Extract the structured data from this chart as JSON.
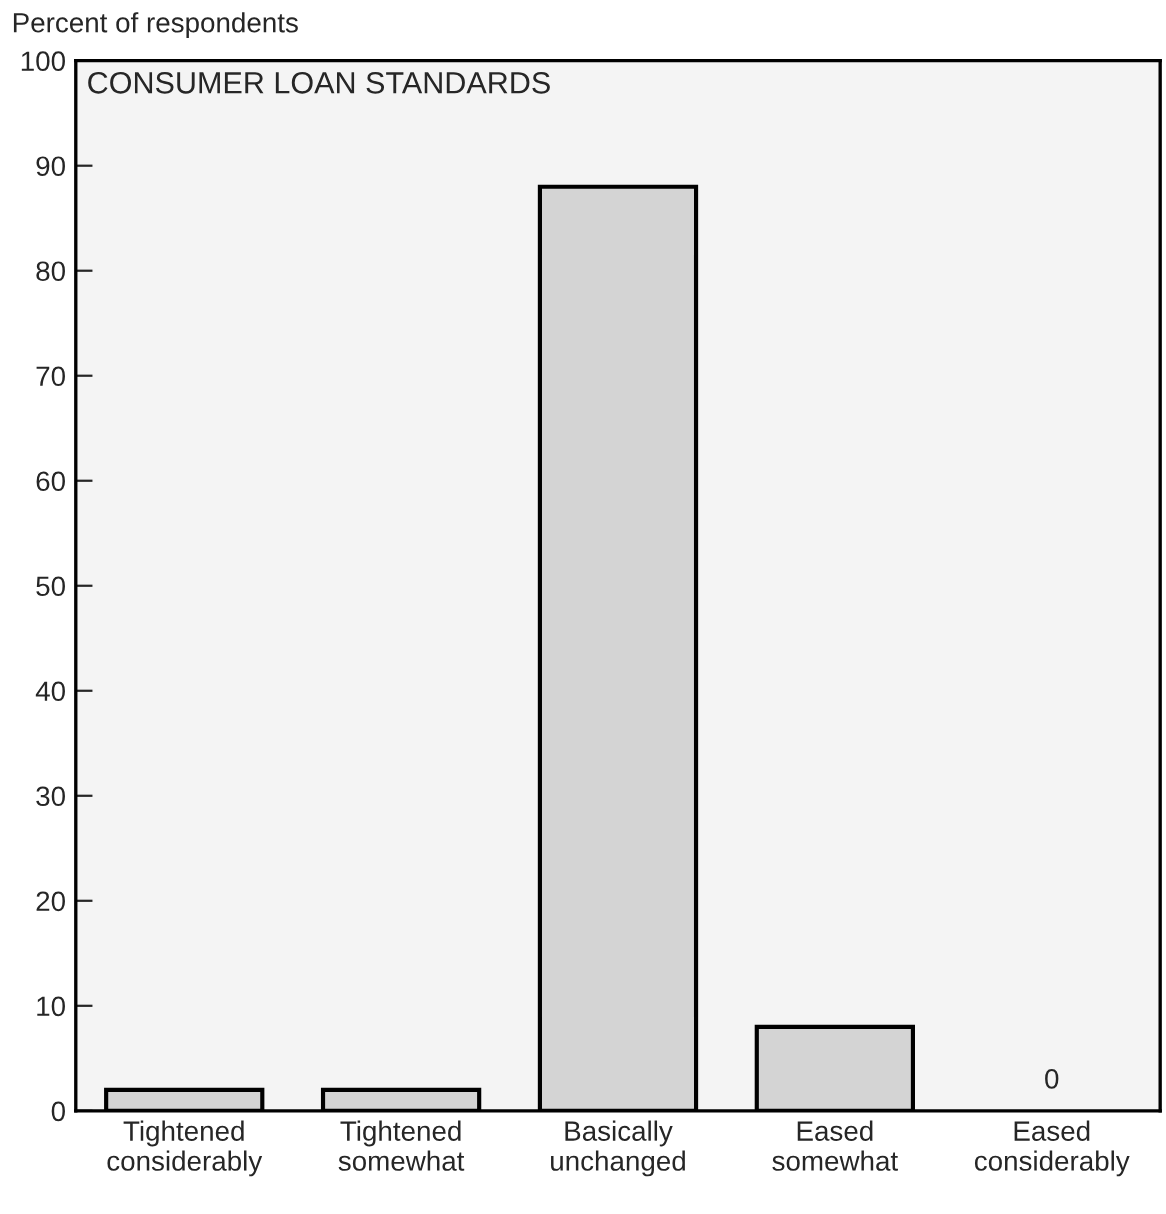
{
  "chart_data": {
    "type": "bar",
    "title": "CONSUMER LOAN STANDARDS",
    "ylabel": "Percent of respondents",
    "categories": [
      "Tightened\nconsiderably",
      "Tightened\nsomewhat",
      "Basically\nunchanged",
      "Eased\nsomewhat",
      "Eased\nconsiderably"
    ],
    "values": [
      2,
      2,
      88,
      8,
      0
    ],
    "value_labels": [
      null,
      null,
      null,
      null,
      "0"
    ],
    "color": "#d4d4d4",
    "ylim": [
      0,
      100
    ],
    "yticks": [
      0,
      10,
      20,
      30,
      40,
      50,
      60,
      70,
      80,
      90,
      100
    ],
    "grid": false,
    "legend": false
  }
}
